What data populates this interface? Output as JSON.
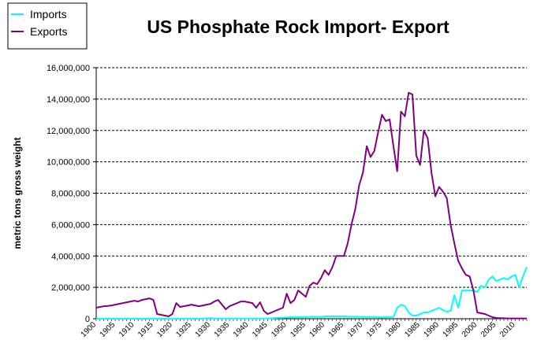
{
  "chart_data": {
    "type": "line",
    "title": "US Phosphate Rock Import- Export",
    "xlabel": "",
    "ylabel": "metric tons gross weight",
    "xlim": [
      1900,
      2013
    ],
    "ylim": [
      0,
      16000000
    ],
    "y_ticks": [
      {
        "value": 0,
        "label": "0"
      },
      {
        "value": 2000000,
        "label": "2,000,000"
      },
      {
        "value": 4000000,
        "label": "4,000,000"
      },
      {
        "value": 6000000,
        "label": "6,000,000"
      },
      {
        "value": 8000000,
        "label": "8,000,000"
      },
      {
        "value": 10000000,
        "label": "10,000,000"
      },
      {
        "value": 12000000,
        "label": "12,000,000"
      },
      {
        "value": 14000000,
        "label": "14,000,000"
      },
      {
        "value": 16000000,
        "label": "16,000,000"
      }
    ],
    "x_tick_labels": [
      "1900",
      "1905",
      "1910",
      "1915",
      "1920",
      "1925",
      "1930",
      "1935",
      "1940",
      "1945",
      "1950",
      "1955",
      "1960",
      "1965",
      "1970",
      "1975",
      "1980",
      "1985",
      "1990",
      "1995",
      "2000",
      "2005",
      "2010"
    ],
    "grid": "horizontal dashed",
    "legend_position": "top-left",
    "x": [
      1900,
      1901,
      1902,
      1903,
      1904,
      1905,
      1906,
      1907,
      1908,
      1909,
      1910,
      1911,
      1912,
      1913,
      1914,
      1915,
      1916,
      1917,
      1918,
      1919,
      1920,
      1921,
      1922,
      1923,
      1924,
      1925,
      1926,
      1927,
      1928,
      1929,
      1930,
      1931,
      1932,
      1933,
      1934,
      1935,
      1936,
      1937,
      1938,
      1939,
      1940,
      1941,
      1942,
      1943,
      1944,
      1945,
      1946,
      1947,
      1948,
      1949,
      1950,
      1951,
      1952,
      1953,
      1954,
      1955,
      1956,
      1957,
      1958,
      1959,
      1960,
      1961,
      1962,
      1963,
      1964,
      1965,
      1966,
      1967,
      1968,
      1969,
      1970,
      1971,
      1972,
      1973,
      1974,
      1975,
      1976,
      1977,
      1978,
      1979,
      1980,
      1981,
      1982,
      1983,
      1984,
      1985,
      1986,
      1987,
      1988,
      1989,
      1990,
      1991,
      1992,
      1993,
      1994,
      1995,
      1996,
      1997,
      1998,
      1999,
      2000,
      2001,
      2002,
      2003,
      2004,
      2005,
      2006,
      2007,
      2008,
      2009,
      2010,
      2011,
      2012,
      2013
    ],
    "series": [
      {
        "name": "Imports",
        "color": "#00FFFF",
        "values": [
          0,
          0,
          0,
          0,
          0,
          0,
          0,
          0,
          0,
          0,
          0,
          0,
          0,
          0,
          0,
          0,
          0,
          0,
          0,
          0,
          0,
          0,
          0,
          0,
          0,
          0,
          0,
          0,
          0,
          30000,
          40000,
          20000,
          10000,
          10000,
          10000,
          10000,
          10000,
          20000,
          10000,
          10000,
          10000,
          10000,
          10000,
          10000,
          10000,
          20000,
          30000,
          50000,
          60000,
          60000,
          80000,
          100000,
          90000,
          100000,
          110000,
          100000,
          120000,
          130000,
          120000,
          120000,
          150000,
          150000,
          160000,
          150000,
          150000,
          160000,
          140000,
          130000,
          130000,
          120000,
          120000,
          110000,
          120000,
          110000,
          100000,
          90000,
          100000,
          110000,
          120000,
          700000,
          900000,
          800000,
          400000,
          200000,
          200000,
          300000,
          400000,
          400000,
          500000,
          600000,
          700000,
          550000,
          450000,
          500000,
          1500000,
          700000,
          1800000,
          1800000,
          1800000,
          1800000,
          1700000,
          2100000,
          2000000,
          2500000,
          2700000,
          2400000,
          2500000,
          2600000,
          2500000,
          2700000,
          2800000,
          2000000,
          2700000,
          3300000
        ]
      },
      {
        "name": "Exports",
        "color": "#800080",
        "values": [
          700000,
          750000,
          800000,
          820000,
          850000,
          900000,
          950000,
          1000000,
          1050000,
          1100000,
          1150000,
          1100000,
          1200000,
          1250000,
          1300000,
          1200000,
          300000,
          250000,
          200000,
          150000,
          300000,
          1000000,
          750000,
          800000,
          850000,
          900000,
          850000,
          800000,
          850000,
          900000,
          950000,
          1100000,
          1200000,
          900000,
          600000,
          800000,
          900000,
          1000000,
          1100000,
          1100000,
          1050000,
          1000000,
          700000,
          1050000,
          500000,
          300000,
          400000,
          500000,
          600000,
          700000,
          1600000,
          1000000,
          1200000,
          1800000,
          1600000,
          1400000,
          2100000,
          2300000,
          2200000,
          2600000,
          3100000,
          2800000,
          3300000,
          4000000,
          4000000,
          4000000,
          4800000,
          6000000,
          7000000,
          8500000,
          9300000,
          11000000,
          10300000,
          10700000,
          11900000,
          13000000,
          12600000,
          12700000,
          11000000,
          9400000,
          13200000,
          12900000,
          14400000,
          14300000,
          10400000,
          9800000,
          12000000,
          11500000,
          9300000,
          7800000,
          8400000,
          8100000,
          7700000,
          6000000,
          4800000,
          3700000,
          3200000,
          2800000,
          2700000,
          1800000,
          400000,
          350000,
          300000,
          200000,
          100000,
          50000,
          40000,
          30000,
          20000,
          20000,
          20000,
          20000,
          20000,
          10000
        ]
      }
    ]
  }
}
